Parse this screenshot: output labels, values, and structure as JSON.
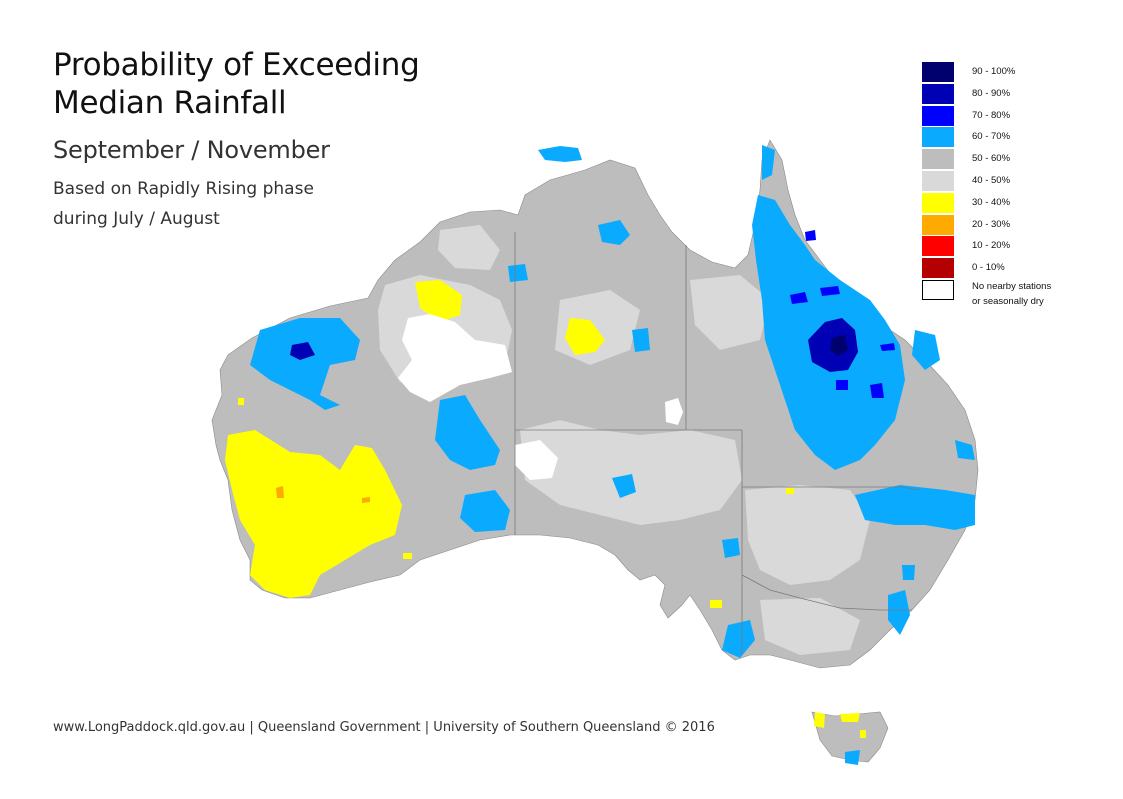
{
  "title_lines": [
    "Probability of Exceeding",
    "Median Rainfall"
  ],
  "subtitle": "September / November",
  "note_lines": [
    "Based on Rapidly Rising phase",
    "during July / August"
  ],
  "legend": [
    {
      "label": "90 - 100%",
      "color": "#00006e"
    },
    {
      "label": "80 - 90%",
      "color": "#0000b4"
    },
    {
      "label": "70 - 80%",
      "color": "#0000ff"
    },
    {
      "label": "60 - 70%",
      "color": "#0aaaff"
    },
    {
      "label": "50 - 60%",
      "color": "#bdbdbd"
    },
    {
      "label": "40 - 50%",
      "color": "#d9d9d9"
    },
    {
      "label": "30 - 40%",
      "color": "#ffff00"
    },
    {
      "label": "20 - 30%",
      "color": "#ffaa00"
    },
    {
      "label": "10 - 20%",
      "color": "#ff0000"
    },
    {
      "label": "0 - 10%",
      "color": "#b40000"
    }
  ],
  "legend_nodata": {
    "line1": "No nearby stations",
    "line2": "or seasonally dry",
    "color": "#ffffff"
  },
  "footer": "www.LongPaddock.qld.gov.au | Queensland Government | University of Southern Queensland © 2016"
}
